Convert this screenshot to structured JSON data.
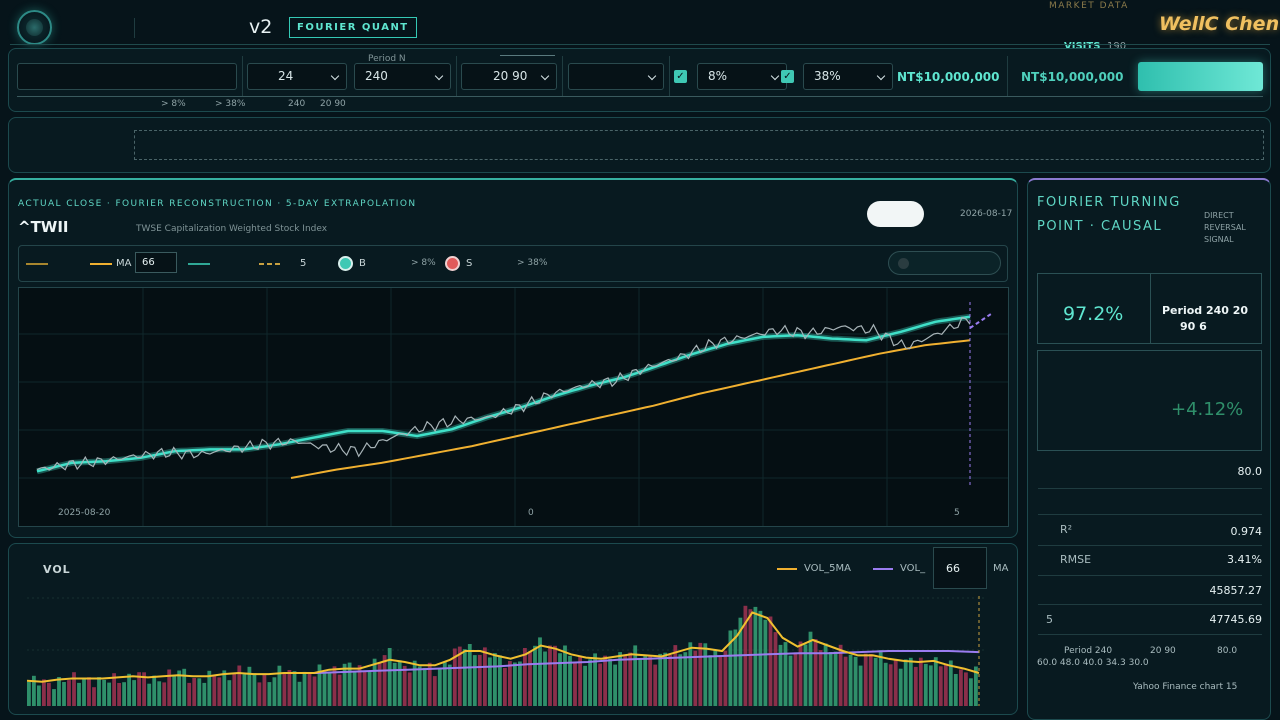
{
  "header": {
    "version": "v2",
    "tag": "FOURIER QUANT",
    "market_data": "MARKET DATA",
    "brand": "WellC Chen",
    "visits_label": "VISITS",
    "visits_count": "190"
  },
  "controls": {
    "select_1": "24",
    "period_label": "Period N",
    "select_2": "240",
    "select_3": "20  90",
    "threshold_1": "8%",
    "threshold_2": "38%",
    "capital_1": "NT$10,000,000",
    "capital_2": "NT$10,000,000",
    "sub_1": "> 8%",
    "sub_2": "> 38%",
    "sub_3": "240",
    "sub_4": "20  90"
  },
  "main_chart": {
    "subtitle": "ACTUAL CLOSE · FOURIER RECONSTRUCTION · 5-DAY EXTRAPOLATION",
    "ticker": "^TWII",
    "index_name": "TWSE Capitalization Weighted Stock Index",
    "date": "2026-08-17",
    "legend_ma": "MA",
    "ma_value": "66",
    "legend_extrap": "5",
    "buy_label": "B",
    "buy_cond": "> 8%",
    "sell_label": "S",
    "sell_cond": "> 38%",
    "x_start": "2025-08-20",
    "x_mid": "0",
    "x_end": "5"
  },
  "volume_chart": {
    "title": "VOL",
    "legend_5ma": "VOL_5MA",
    "legend_ma": "VOL_",
    "ma_value": "66",
    "ma_suffix": "MA"
  },
  "side": {
    "title_line1": "FOURIER TURNING",
    "title_line2": "POINT · CAUSAL",
    "note_1": "DIRECT",
    "note_2": "REVERSAL",
    "note_3": "SIGNAL",
    "confidence": "97.2%",
    "period_line1": "Period 240   20",
    "period_line2": "90     6",
    "change": "+4.12%",
    "val_80": "80.0",
    "r2_label": "R²",
    "r2": "0.974",
    "rmse_label": "RMSE",
    "rmse": "3.41%",
    "val_a": "45857.27",
    "val_b_label": "5",
    "val_b": "47745.69",
    "foot_1": "Period 240",
    "foot_2": "20  90",
    "foot_3": "80.0",
    "foot_4": "60.0  48.0  40.0  34.3  30.0",
    "source": "Yahoo Finance chart  15"
  },
  "colors": {
    "accent": "#3fe0c8",
    "ma": "#f0b030",
    "actual": "#a8b4b8",
    "vol_up": "#2f8f6a",
    "vol_down": "#8a2f4a",
    "vol_ma": "#9a7cf0",
    "buy": "#3fc8b4",
    "sell": "#e05a5a"
  },
  "chart_data": {
    "type": "line",
    "x_labels": [
      "2025-08-20",
      "0",
      "5"
    ],
    "series": [
      {
        "values": [
          0.05,
          0.08,
          0.1,
          0.13,
          0.15,
          0.14,
          0.17,
          0.2,
          0.22,
          0.18,
          0.16,
          0.24,
          0.3,
          0.34,
          0.36,
          0.42,
          0.5,
          0.55,
          0.58,
          0.66,
          0.72,
          0.8,
          0.84,
          0.88,
          0.86,
          0.9,
          0.88,
          0.78,
          0.86,
          0.95
        ]
      },
      {
        "values": [
          0.04,
          0.09,
          0.1,
          0.12,
          0.16,
          0.17,
          0.17,
          0.2,
          0.24,
          0.28,
          0.28,
          0.25,
          0.29,
          0.36,
          0.42,
          0.49,
          0.55,
          0.6,
          0.67,
          0.74,
          0.8,
          0.84,
          0.85,
          0.83,
          0.82,
          0.87,
          0.93,
          0.96
        ]
      },
      {
        "values": [
          0.0,
          0.05,
          0.09,
          0.14,
          0.19,
          0.25,
          0.31,
          0.37,
          0.43,
          0.5,
          0.56,
          0.62,
          0.68,
          0.74,
          0.79,
          0.82
        ]
      }
    ],
    "volume": {
      "values": [
        0.22,
        0.2,
        0.24,
        0.23,
        0.26,
        0.21,
        0.25,
        0.28,
        0.24,
        0.27,
        0.3,
        0.26,
        0.25,
        0.29,
        0.33,
        0.28,
        0.26,
        0.31,
        0.3,
        0.28,
        0.34,
        0.36,
        0.32,
        0.4,
        0.46,
        0.38,
        0.35,
        0.33,
        0.42,
        0.55,
        0.5,
        0.44,
        0.4,
        0.45,
        0.6,
        0.52,
        0.46,
        0.42,
        0.41,
        0.45,
        0.48,
        0.47,
        0.43,
        0.5,
        0.55,
        0.52,
        0.48,
        0.7,
        0.95,
        0.82,
        0.58,
        0.5,
        0.62,
        0.55,
        0.48,
        0.44,
        0.46,
        0.42,
        0.4,
        0.38,
        0.43,
        0.36,
        0.33,
        0.3
      ],
      "ma5": [
        0.23,
        0.22,
        0.24,
        0.25,
        0.25,
        0.25,
        0.26,
        0.27,
        0.26,
        0.27,
        0.28,
        0.27,
        0.27,
        0.29,
        0.3,
        0.29,
        0.29,
        0.3,
        0.3,
        0.3,
        0.33,
        0.34,
        0.34,
        0.38,
        0.42,
        0.4,
        0.37,
        0.37,
        0.42,
        0.5,
        0.5,
        0.46,
        0.43,
        0.47,
        0.55,
        0.52,
        0.47,
        0.44,
        0.43,
        0.45,
        0.47,
        0.46,
        0.45,
        0.49,
        0.53,
        0.52,
        0.5,
        0.64,
        0.85,
        0.8,
        0.62,
        0.54,
        0.6,
        0.55,
        0.5,
        0.46,
        0.46,
        0.43,
        0.41,
        0.4,
        0.41,
        0.37,
        0.34,
        0.3
      ],
      "ma66": [
        0.3,
        0.3,
        0.31,
        0.32,
        0.33,
        0.34,
        0.35,
        0.36,
        0.38,
        0.39,
        0.4,
        0.42,
        0.43,
        0.44,
        0.45,
        0.46,
        0.47,
        0.48,
        0.48,
        0.49,
        0.5,
        0.5,
        0.5,
        0.49
      ]
    }
  }
}
